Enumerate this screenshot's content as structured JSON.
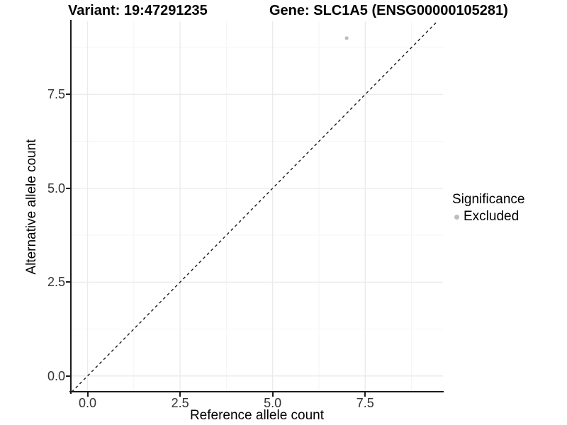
{
  "titles": {
    "variant": "Variant: 19:47291235",
    "gene": "Gene: SLC1A5 (ENSG00000105281)"
  },
  "chart_data": {
    "type": "scatter",
    "title_left": "Variant: 19:47291235",
    "title_right": "Gene: SLC1A5 (ENSG00000105281)",
    "xlabel": "Reference allele count",
    "ylabel": "Alternative allele count",
    "xlim": [
      -0.45,
      9.6
    ],
    "ylim": [
      -0.42,
      9.45
    ],
    "x_ticks": [
      0.0,
      2.5,
      5.0,
      7.5
    ],
    "x_tick_labels": [
      "0.0",
      "2.5",
      "5.0",
      "7.5"
    ],
    "y_ticks": [
      0.0,
      2.5,
      5.0,
      7.5
    ],
    "y_tick_labels": [
      "0.0",
      "2.5",
      "5.0",
      "7.5"
    ],
    "x_minor_ticks": [
      1.25,
      3.75,
      6.25,
      8.75
    ],
    "y_minor_ticks": [
      1.25,
      3.75,
      6.25,
      8.75
    ],
    "grid": true,
    "series": [
      {
        "name": "Excluded",
        "color": "#bdbdbd",
        "points": [
          {
            "x": 7,
            "y": 9
          }
        ]
      }
    ],
    "reference_line": {
      "type": "identity",
      "slope": 1,
      "intercept": 0,
      "style": "dashed",
      "color": "#1a1a1a"
    },
    "legend": {
      "title": "Significance",
      "position": "right",
      "entries": [
        {
          "label": "Excluded",
          "color": "#bdbdbd"
        }
      ]
    }
  },
  "colors": {
    "background": "#ffffff",
    "axis_line": "#1a1a1a",
    "tick_text": "#333333",
    "grid_major": "#ebebeb",
    "grid_minor": "#f6f6f6",
    "point": "#bdbdbd"
  }
}
